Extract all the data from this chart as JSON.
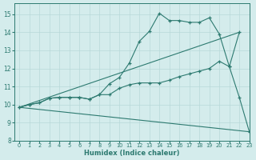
{
  "bg_color": "#d4ecec",
  "grid_color": "#b8d8d8",
  "line_color": "#2d7a70",
  "xlabel": "Humidex (Indice chaleur)",
  "xlim": [
    -0.5,
    23
  ],
  "ylim": [
    8,
    15.6
  ],
  "xticks": [
    0,
    1,
    2,
    3,
    4,
    5,
    6,
    7,
    8,
    9,
    10,
    11,
    12,
    13,
    14,
    15,
    16,
    17,
    18,
    19,
    20,
    21,
    22,
    23
  ],
  "yticks": [
    8,
    9,
    10,
    11,
    12,
    13,
    14,
    15
  ],
  "line1_x": [
    0,
    1,
    2,
    3,
    4,
    5,
    6,
    7,
    8,
    9,
    10,
    11,
    12,
    13,
    14,
    15,
    16,
    17,
    18,
    19,
    20,
    21,
    22
  ],
  "line1_y": [
    9.85,
    10.0,
    10.1,
    10.35,
    10.4,
    10.4,
    10.4,
    10.3,
    10.55,
    11.15,
    11.5,
    12.3,
    13.5,
    14.05,
    15.05,
    14.65,
    14.65,
    14.55,
    14.55,
    14.8,
    13.9,
    12.1,
    14.0
  ],
  "line2_x": [
    0,
    22
  ],
  "line2_y": [
    9.85,
    14.0
  ],
  "line3_x": [
    0,
    23
  ],
  "line3_y": [
    9.85,
    8.5
  ],
  "line4_x": [
    0,
    1,
    2,
    3,
    4,
    5,
    6,
    7,
    8,
    9,
    10,
    11,
    12,
    13,
    14,
    15,
    16,
    17,
    18,
    19,
    20,
    21,
    22,
    23
  ],
  "line4_y": [
    9.85,
    10.0,
    10.1,
    10.35,
    10.4,
    10.4,
    10.4,
    10.3,
    10.55,
    10.55,
    10.9,
    11.1,
    11.2,
    11.2,
    11.2,
    11.35,
    11.55,
    11.7,
    11.85,
    12.0,
    12.4,
    12.1,
    10.4,
    8.5
  ]
}
